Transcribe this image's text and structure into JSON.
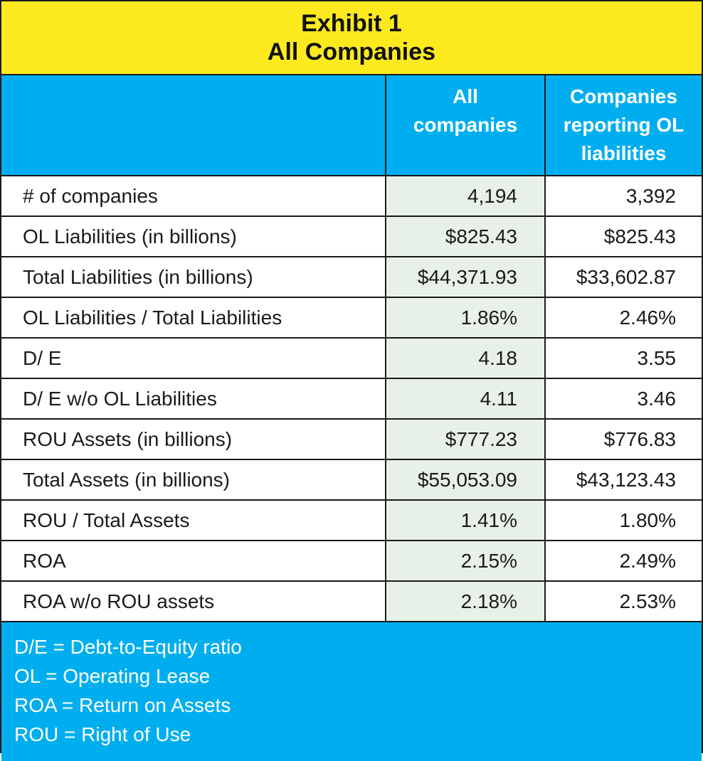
{
  "title": {
    "line1": "Exhibit 1",
    "line2": "All Companies"
  },
  "columns": [
    "",
    "All companies",
    "Companies reporting OL liabilities"
  ],
  "rows": [
    {
      "label": "# of companies",
      "all": "4,194",
      "ol": "3,392"
    },
    {
      "label": "OL Liabilities (in billions)",
      "all": "$825.43",
      "ol": "$825.43"
    },
    {
      "label": "Total Liabilities (in billions)",
      "all": "$44,371.93",
      "ol": "$33,602.87"
    },
    {
      "label": "OL Liabilities / Total Liabilities",
      "all": "1.86%",
      "ol": "2.46%"
    },
    {
      "label": "D/ E",
      "all": "4.18",
      "ol": "3.55"
    },
    {
      "label": "D/ E w/o OL Liabilities",
      "all": "4.11",
      "ol": "3.46"
    },
    {
      "label": "ROU Assets (in billions)",
      "all": "$777.23",
      "ol": "$776.83"
    },
    {
      "label": "Total Assets (in billions)",
      "all": "$55,053.09",
      "ol": "$43,123.43"
    },
    {
      "label": "ROU / Total Assets",
      "all": "1.41%",
      "ol": "1.80%"
    },
    {
      "label": "ROA",
      "all": "2.15%",
      "ol": "2.49%"
    },
    {
      "label": "ROA w/o ROU assets",
      "all": "2.18%",
      "ol": "2.53%"
    }
  ],
  "legend": [
    "D/E = Debt-to-Equity ratio",
    "OL = Operating Lease",
    "ROA = Return on Assets",
    "ROU = Right of Use"
  ],
  "colors": {
    "title_bg": "#fcea1f",
    "header_bg": "#00aeef",
    "highlight_column_bg": "#e8f1e8",
    "border": "#1a1a1a"
  }
}
